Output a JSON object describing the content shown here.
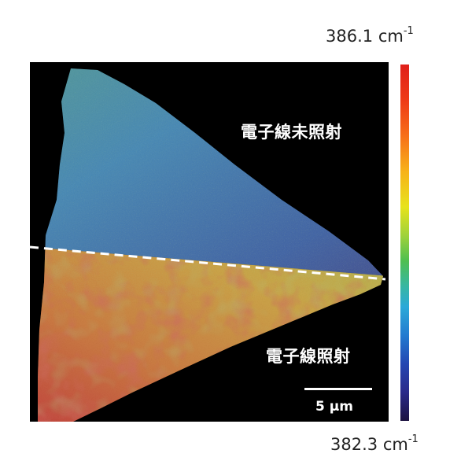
{
  "labels": {
    "unirradiated": "電子線未照射",
    "irradiated": "電子線照射"
  },
  "scale_bar": {
    "text": "5 µm"
  },
  "colorbar": {
    "max_value": "386.1",
    "min_value": "382.3",
    "unit": "cm",
    "unit_exponent": "-1",
    "colors": [
      "#e0201a",
      "#f7b21a",
      "#e7e31c",
      "#4fbf50",
      "#2aa9d8",
      "#2447b2",
      "#1c1240"
    ]
  },
  "regions": {
    "top_color": "#2a78c8",
    "bottom_color": "#e8902a"
  }
}
